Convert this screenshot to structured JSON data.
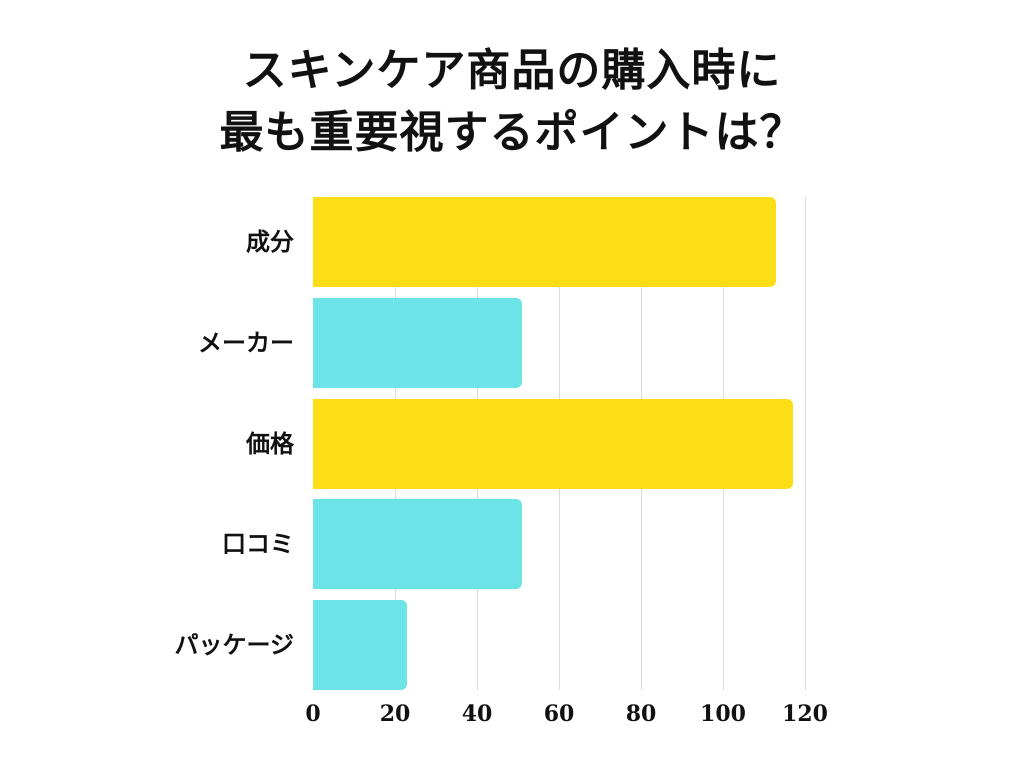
{
  "title": {
    "line1": "スキンケア商品の購入時に",
    "line2": "最も重要視するポイントは？"
  },
  "colors": {
    "yellow": "#FDDD16",
    "cyan": "#6BE3E7",
    "gridline": "#DCDCDC",
    "text": "#111111"
  },
  "chart_data": {
    "type": "bar",
    "orientation": "horizontal",
    "title": "スキンケア商品の購入時に最も重要視するポイントは？",
    "xlabel": "",
    "ylabel": "",
    "categories": [
      "成分",
      "メーカー",
      "価格",
      "口コミ",
      "パッケージ"
    ],
    "values": [
      113,
      51,
      117,
      51,
      23
    ],
    "bar_colors": [
      "#FDDD16",
      "#6BE3E7",
      "#FDDD16",
      "#6BE3E7",
      "#6BE3E7"
    ],
    "xlim": [
      0,
      120
    ],
    "xticks": [
      "0",
      "20",
      "40",
      "60",
      "80",
      "100",
      "120"
    ],
    "grid": true,
    "legend": false
  }
}
